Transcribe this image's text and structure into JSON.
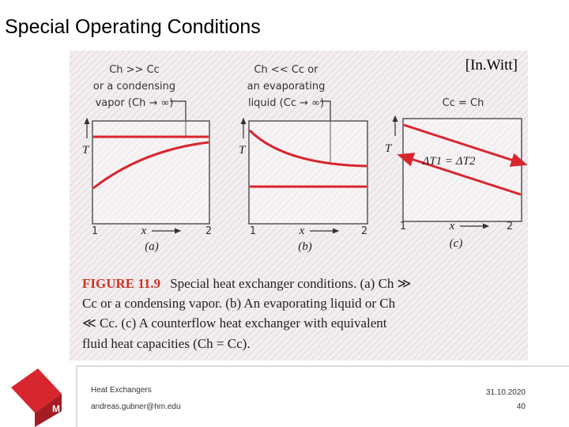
{
  "header": {
    "title": "Special Operating Conditions",
    "citation": "[In.Witt]"
  },
  "figure": {
    "panels": [
      {
        "label_lines": [
          "Ch >> Cc",
          "or a condensing",
          "vapor (Ch → ∞)"
        ],
        "y_label": "T",
        "x_start": "1",
        "x_label": "x",
        "x_end": "2",
        "tag": "(a)"
      },
      {
        "label_lines": [
          "Ch << Cc or",
          "an evaporating",
          "liquid (Cc → ∞)"
        ],
        "y_label": "T",
        "x_start": "1",
        "x_label": "x",
        "x_end": "2",
        "tag": "(b)"
      },
      {
        "label_lines": [
          "Cc = Ch"
        ],
        "annotation": "ΔT1 = ΔT2",
        "y_label": "T",
        "x_start": "1",
        "x_label": "x",
        "x_end": "2",
        "tag": "(c)"
      }
    ],
    "caption_label": "FIGURE 11.9",
    "caption_lines": [
      "Special heat exchanger conditions. (a) Ch ≫",
      "Cc or a condensing vapor. (b) An evaporating liquid or Ch",
      "≪ Cc. (c) A counterflow heat exchanger with equivalent",
      "fluid heat capacities (Ch = Cc)."
    ]
  },
  "footer": {
    "logo": "M",
    "topic": "Heat  Exchangers",
    "email": "andreas.gubner@hm.edu",
    "date": "31.10.2020",
    "page": "40"
  }
}
